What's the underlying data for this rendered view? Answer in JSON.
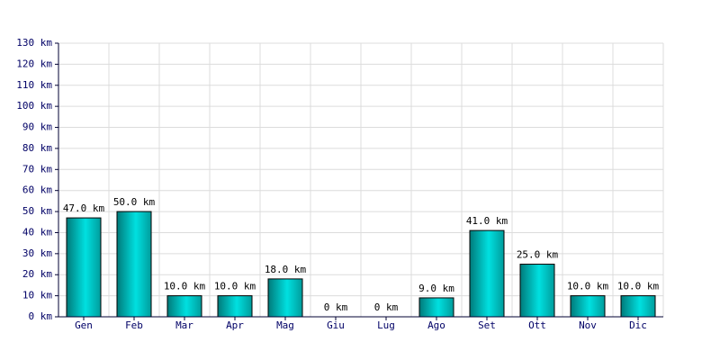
{
  "chart_data": {
    "type": "bar",
    "categories": [
      "Gen",
      "Feb",
      "Mar",
      "Apr",
      "Mag",
      "Giu",
      "Lug",
      "Ago",
      "Set",
      "Ott",
      "Nov",
      "Dic"
    ],
    "values": [
      47,
      50,
      10,
      10,
      18,
      0,
      0,
      9,
      41,
      25,
      10,
      10
    ],
    "value_labels": [
      "47.0 km",
      "50.0 km",
      "10.0 km",
      "10.0 km",
      "18.0 km",
      "0 km",
      "0 km",
      "9.0 km",
      "41.0 km",
      "25.0 km",
      "10.0 km",
      "10.0 km"
    ],
    "color": "#00e0e0",
    "ylim": [
      0,
      130
    ],
    "yticks": [
      {
        "value": 0,
        "label": "0 km"
      },
      {
        "value": 10,
        "label": "10 km"
      },
      {
        "value": 20,
        "label": "20 km"
      },
      {
        "value": 30,
        "label": "30 km"
      },
      {
        "value": 40,
        "label": "40 km"
      },
      {
        "value": 50,
        "label": "50 km"
      },
      {
        "value": 60,
        "label": "60 km"
      },
      {
        "value": 70,
        "label": "70 km"
      },
      {
        "value": 80,
        "label": "80 km"
      },
      {
        "value": 90,
        "label": "90 km"
      },
      {
        "value": 100,
        "label": "100 km"
      },
      {
        "value": 110,
        "label": "110 km"
      },
      {
        "value": 120,
        "label": "120 km"
      },
      {
        "value": 130,
        "label": "130 km"
      }
    ],
    "grid": true
  }
}
